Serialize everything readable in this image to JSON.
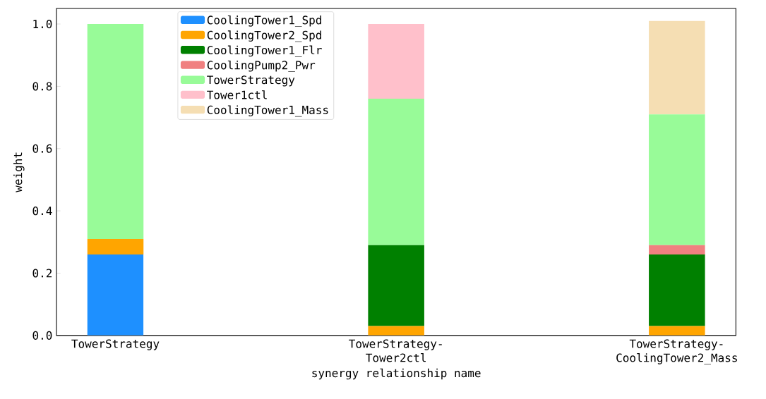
{
  "chart_data": {
    "type": "bar",
    "stacked": true,
    "xlabel": "synergy relationship name",
    "ylabel": "weight",
    "categories": [
      "TowerStrategy",
      "TowerStrategy-Tower2ctl",
      "TowerStrategy-CoolingTower2_Mass"
    ],
    "series": [
      {
        "name": "CoolingTower1_Spd",
        "color": "#1e90ff",
        "values": [
          0.26,
          0,
          0
        ]
      },
      {
        "name": "CoolingTower2_Spd",
        "color": "#ffa500",
        "values": [
          0.05,
          0.03,
          0.03
        ]
      },
      {
        "name": "CoolingTower1_Flr",
        "color": "#008000",
        "values": [
          0,
          0.26,
          0.23
        ]
      },
      {
        "name": "CoolingPump2_Pwr",
        "color": "#f08080",
        "values": [
          0,
          0,
          0.03
        ]
      },
      {
        "name": "TowerStrategy",
        "color": "#98fb98",
        "values": [
          0.69,
          0.47,
          0.42
        ]
      },
      {
        "name": "Tower1ctl",
        "color": "#ffc0cb",
        "values": [
          0,
          0.24,
          0
        ]
      },
      {
        "name": "CoolingTower1_Mass",
        "color": "#f5deb3",
        "values": [
          0,
          0,
          0.3
        ]
      }
    ],
    "ylim": [
      0,
      1.05
    ],
    "yticks": [
      {
        "value": 0,
        "label": "0.0"
      },
      {
        "value": 0.2,
        "label": "0.2"
      },
      {
        "value": 0.4,
        "label": "0.4"
      },
      {
        "value": 0.6,
        "label": "0.6"
      },
      {
        "value": 0.8,
        "label": "0.8"
      },
      {
        "value": 1.0,
        "label": "1.0"
      }
    ],
    "legend": "top left"
  }
}
